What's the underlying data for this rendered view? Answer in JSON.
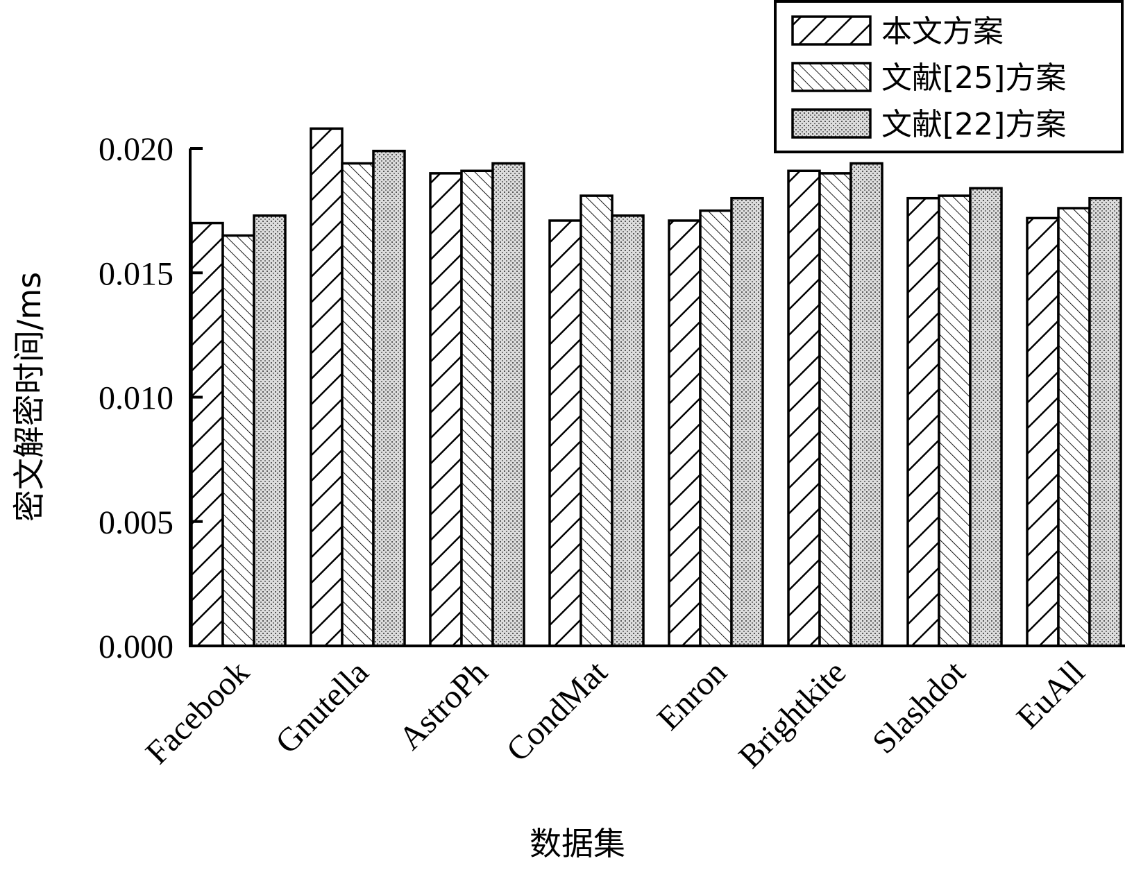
{
  "chart_data": {
    "type": "bar",
    "title": "",
    "xlabel": "数据集",
    "ylabel": "密文解密时间/ms",
    "ylim": [
      0,
      0.02
    ],
    "yticks": [
      "0.000",
      "0.005",
      "0.010",
      "0.015",
      "0.020"
    ],
    "categories": [
      "Facebook",
      "Gnutella",
      "AstroPh",
      "CondMat",
      "Enron",
      "Brightkite",
      "Slashdot",
      "EuAll"
    ],
    "series": [
      {
        "name": "本文方案",
        "pattern": "wide-diagonal-hatch",
        "values": [
          0.017,
          0.0208,
          0.019,
          0.0171,
          0.0171,
          0.0191,
          0.018,
          0.0172
        ]
      },
      {
        "name": "文献[25]方案",
        "pattern": "fine-diagonal-hatch",
        "values": [
          0.0165,
          0.0194,
          0.0191,
          0.0181,
          0.0175,
          0.019,
          0.0181,
          0.0176
        ]
      },
      {
        "name": "文献[22]方案",
        "pattern": "dotted-fill",
        "values": [
          0.0173,
          0.0199,
          0.0194,
          0.0173,
          0.018,
          0.0194,
          0.0184,
          0.018
        ]
      }
    ],
    "legend_position": "top-right",
    "grid": false
  }
}
